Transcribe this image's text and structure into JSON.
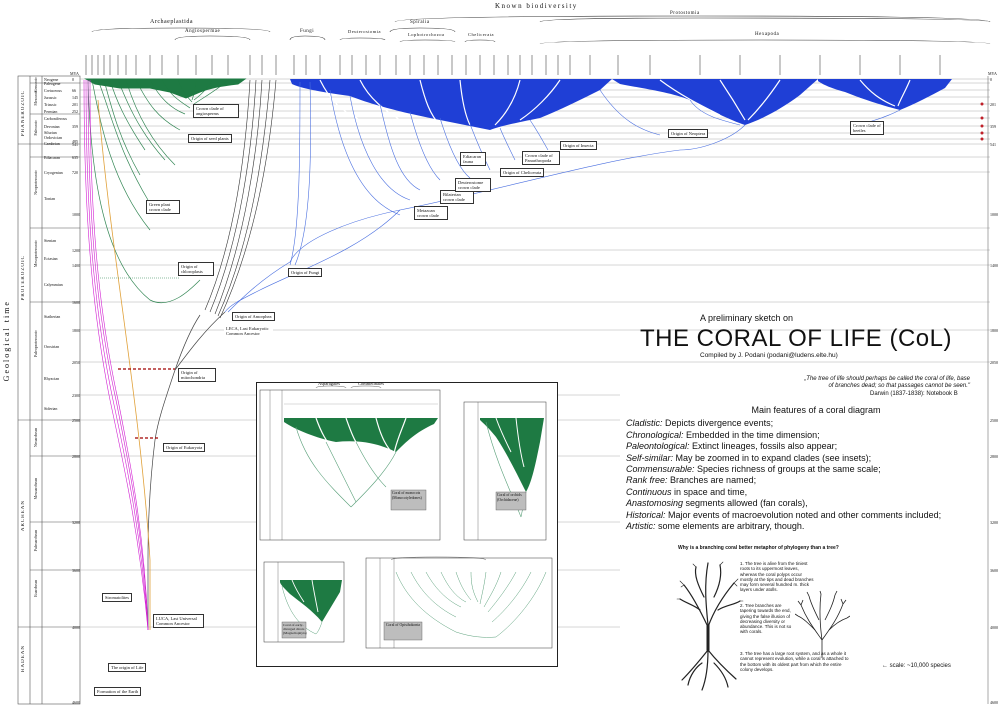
{
  "header": {
    "known_biodiversity": "Known biodiversity",
    "groups": {
      "archaeplastida": "Archaeplastida",
      "angiospermae": "Angiospermae",
      "fungi": "Fungi",
      "deuterostomia": "Deuterostomia",
      "spiralia": "Spiralia",
      "lophotrochozoa": "Lophotrochozoa",
      "chelicerata": "Chelicerata",
      "protostomia": "Protostomia",
      "hexapoda": "Hexapoda"
    }
  },
  "left_axis": {
    "geological_time": "Geological time",
    "eons": [
      "PHANEROZOIC",
      "PROTEROZOIC",
      "ARCHEAN",
      "HADEAN"
    ],
    "eras": [
      "Cenozoic",
      "Mesozoic",
      "Paleozoic",
      "Neoproterozoic",
      "Mesoproterozoic",
      "Paleoproterozoic",
      "Neoarchean",
      "Mesoarchean",
      "Paleoarchean",
      "Eoarchean"
    ],
    "periods": [
      "Neogene",
      "Paleogene",
      "Cretaceous",
      "Jurassic",
      "Triassic",
      "Permian",
      "Carboniferous",
      "Devonian",
      "Silurian",
      "Ordovician",
      "Cambrian",
      "Ediacaran",
      "Cryogenian",
      "Tonian",
      "Stenian",
      "Ectasian",
      "Calymmian",
      "Statherian",
      "Orosirian",
      "Rhyacian",
      "Siderian"
    ],
    "ma_label": "MYA",
    "ticks": [
      "0",
      "23",
      "66",
      "145",
      "201",
      "252",
      "299",
      "359",
      "419",
      "443",
      "485",
      "541",
      "635",
      "720",
      "1000",
      "1200",
      "1400",
      "1600",
      "1800",
      "2050",
      "2300",
      "2500",
      "2800",
      "3200",
      "3600",
      "4000",
      "4600"
    ]
  },
  "callouts": {
    "crown_angio": "Crown clade of angiosperms",
    "origin_seed": "Origin of seed plants",
    "green_crown": "Green plant crown clade",
    "origin_plastids": "Origin of chloroplasts",
    "origin_fungi": "Origin of Fungi",
    "origin_amorphea": "Origin of Amorphea",
    "leca": "LECA, Last Eukaryotic Common Ancestor",
    "origin_mito": "Origin of mitochondria",
    "origin_euk": "Origin of Eukaryota",
    "stromatolites": "Stromatolites",
    "luca": "LUCA, Last Universal Common Ancestor",
    "origin_life": "The origin of Life",
    "formation_earth": "Formation of the Earth",
    "metazoan_crown": "Metazoan crown clade",
    "bilaterian_crown": "Bilaterian crown clade",
    "deuterostome_crown": "Deuterostome crown clade",
    "ediacaran_fauna": "Ediacaran fauna",
    "origin_chelicerata": "Origin of Chelicerata",
    "crown_panarthropoda": "Crown clade of Panarthropoda",
    "origin_insecta": "Origin of Insecta",
    "origin_neoptera": "Origin of Neoptera",
    "crown_beetles": "Crown clade of beetles"
  },
  "title_block": {
    "presketch": "A preliminary sketch on",
    "title": "THE CORAL OF LIFE (CoL)",
    "compiled": "Compiled by J. Podani (podani@ludens.elte.hu)",
    "quote": "„The tree of life should perhaps be called the coral of life, base of branches dead; so that passages cannot be seen.\"",
    "darwin": "Darwin (1837-1838): Notebook B"
  },
  "features": {
    "heading": "Main features of a coral diagram",
    "items": [
      {
        "k": "Cladistic:",
        "v": " Depicts divergence events;",
        "italic": true
      },
      {
        "k": "Chronological:",
        "v": " Embedded in the time dimension;",
        "italic": true
      },
      {
        "k": "Paleontological:",
        "v": " Extinct lineages, fossils also appear;",
        "italic": true
      },
      {
        "k": "Self-similar:",
        "v": " May be zoomed in to expand clades (see insets);",
        "italic": true
      },
      {
        "k": "Commensurable:",
        "v": " Species richness of groups at the same scale;",
        "italic": true
      },
      {
        "k": "Rank free:",
        "v": " Branches are named;",
        "italic": true
      },
      {
        "k": "Continuous",
        "v": " in space and time,",
        "italic": true
      },
      {
        "k": "Anastomosing",
        "v": " segments allowed (fan corals),",
        "italic": true
      },
      {
        "k": "Historical:",
        "v": " Major events of macroevolution noted and other comments included;",
        "italic": true
      },
      {
        "k": "Artistic:",
        "v": " some elements are arbitrary, though.",
        "italic": true
      }
    ]
  },
  "coral_vs_tree": {
    "question": "Why is a branching coral better metaphor of phylogeny than a tree?",
    "notes": [
      "1. The tree is alive from the tiniest roots to its uppermost leaves, whereas the coral polyps occur mostly at the tips and dead branches may form several hundred m. thick layers under atolls.",
      "2. Tree branches are tapering towards the end, giving the false illusion of decreasing diversity or abundance. This is not so with corals.",
      "3. The tree has a large root system, and as a whole it cannot represent evolution, while a coral is attached to the bottom with its oldest part from which the entire colony develops."
    ],
    "scale": "← scale: ~10,000 species"
  },
  "insets": {
    "asparagales": "Asparagales",
    "commelinales": "Commelinales",
    "monocots": "Coral of monocots (Monocotyledones)",
    "orchids": "Coral of orchids (Orchidaceae)",
    "dicots": "Coral of early-diverged dicots (Magnoliophyta)",
    "opisthokonta": "Coral of Opisthokonta"
  },
  "colors": {
    "plants": "#1e7a43",
    "animals": "#1f3fd6",
    "fungi_lines": "#3b6ed8",
    "life_pink": "#d21fd2",
    "orange": "#e0a13a",
    "leca_red": "#a00000"
  }
}
